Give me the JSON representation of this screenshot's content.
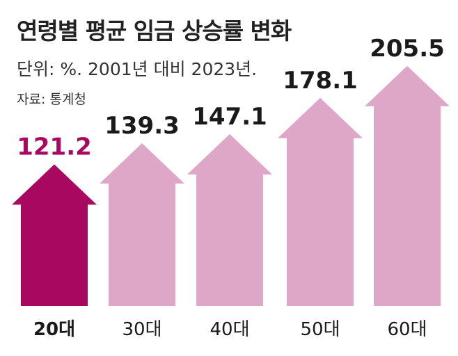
{
  "header": {
    "title": "연령별 평균 임금 상승률 변화",
    "subtitle": "단위: %. 2001년 대비 2023년.",
    "source": "자료: 통계청"
  },
  "colors": {
    "highlight": "#a8085f",
    "normal": "#dfa7c7",
    "highlight_label": "#a8085f",
    "normal_label": "#1a1a1a"
  },
  "chart_data": {
    "type": "bar",
    "title": "연령별 평균 임금 상승률 변화",
    "subtitle": "단위: %. 2001년 대비 2023년.",
    "categories": [
      "20대",
      "30대",
      "40대",
      "50대",
      "60대"
    ],
    "values": [
      121.2,
      139.3,
      147.1,
      178.1,
      205.5
    ],
    "value_labels": [
      "121.2",
      "139.3",
      "147.1",
      "178.1",
      "205.5"
    ],
    "highlight_index": 0,
    "xlabel": "",
    "ylabel": "",
    "mark_shape": "arrow",
    "grid": false,
    "legend": "none"
  }
}
